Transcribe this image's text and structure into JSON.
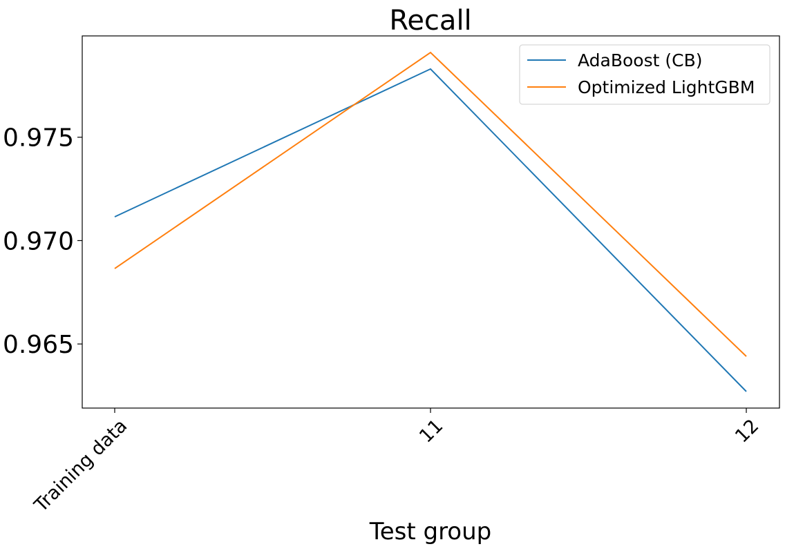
{
  "chart_data": {
    "type": "line",
    "title": "Recall",
    "xlabel": "Test group",
    "ylabel": "",
    "categories": [
      "Training data",
      "11",
      "12"
    ],
    "series": [
      {
        "name": "AdaBoost (CB)",
        "color": "#1f77b4",
        "values": [
          0.97115,
          0.9783,
          0.9627
        ]
      },
      {
        "name": "Optimized LightGBM",
        "color": "#ff7f0e",
        "values": [
          0.96865,
          0.9791,
          0.9644
        ]
      }
    ],
    "yticks": [
      0.965,
      0.97,
      0.975
    ],
    "ytick_labels": [
      "0.965",
      "0.970",
      "0.975"
    ],
    "ylim": [
      0.9619,
      0.9799
    ],
    "grid": false,
    "legend_position": "upper right"
  }
}
